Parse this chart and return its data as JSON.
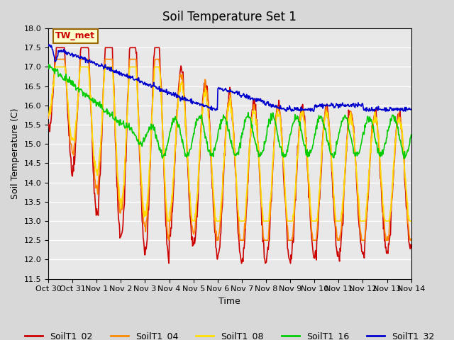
{
  "title": "Soil Temperature Set 1",
  "xlabel": "Time",
  "ylabel": "Soil Temperature (C)",
  "ylim": [
    11.5,
    18.0
  ],
  "yticks": [
    11.5,
    12.0,
    12.5,
    13.0,
    13.5,
    14.0,
    14.5,
    15.0,
    15.5,
    16.0,
    16.5,
    17.0,
    17.5,
    18.0
  ],
  "x_start": 0,
  "x_end": 15,
  "xtick_labels": [
    "Oct 30",
    "Oct 31",
    "Nov 1",
    "Nov 2",
    "Nov 3",
    "Nov 4",
    "Nov 5",
    "Nov 6",
    "Nov 7",
    "Nov 8",
    "Nov 9",
    "Nov 10",
    "Nov 11",
    "Nov 12",
    "Nov 13",
    "Nov 14"
  ],
  "xtick_positions": [
    0,
    1,
    2,
    3,
    4,
    5,
    6,
    7,
    8,
    9,
    10,
    11,
    12,
    13,
    14,
    15
  ],
  "colors": {
    "SoilT1_02": "#cc0000",
    "SoilT1_04": "#ff8800",
    "SoilT1_08": "#ffdd00",
    "SoilT1_16": "#00cc00",
    "SoilT1_32": "#0000cc"
  },
  "legend_label": "TW_met",
  "background_color": "#e8e8e8",
  "plot_bg_color": "#e8e8e8",
  "grid_color": "#ffffff"
}
